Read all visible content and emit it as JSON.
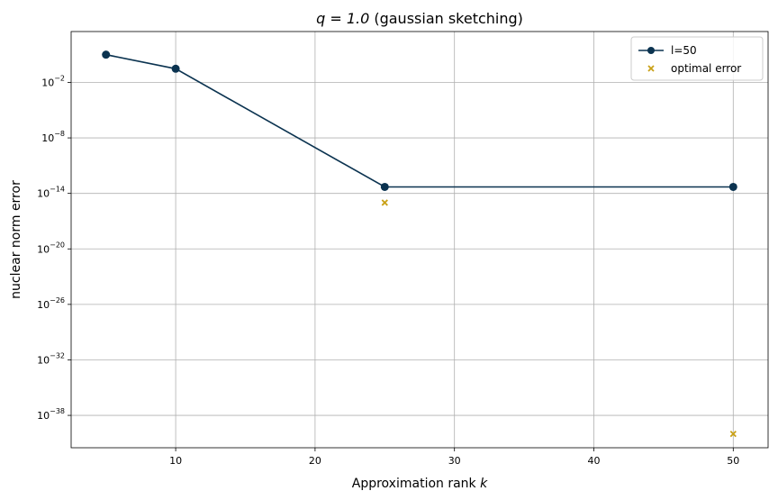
{
  "chart_data": {
    "type": "line",
    "title_math": "q = 1.0",
    "title_rest": " (gaussian sketching)",
    "xlabel": "Approximation rank",
    "xlabel_var": "k",
    "ylabel": "nuclear norm error",
    "y_scale": "log",
    "grid": true,
    "legend_position": "top-right",
    "xlim": [
      2.5,
      52.5
    ],
    "ylim_exp": [
      -41.5,
      3.5
    ],
    "x_ticks": [
      10,
      20,
      30,
      40,
      50
    ],
    "y_tick_exps": [
      -38,
      -32,
      -26,
      -20,
      -14,
      -8,
      -2
    ],
    "y_tick_base": "10",
    "series": [
      {
        "name": "l=50",
        "kind": "line-marker",
        "color": "#0b3350",
        "points": [
          {
            "x": 5,
            "y": 10.0
          },
          {
            "x": 10,
            "y": 0.3
          },
          {
            "x": 25,
            "y": 5e-14
          },
          {
            "x": 50,
            "y": 5e-14
          }
        ]
      },
      {
        "name": "optimal error",
        "kind": "scatter-x",
        "color": "#c9a117",
        "points": [
          {
            "x": 25,
            "y": 1e-15
          },
          {
            "x": 50,
            "y": 1e-40
          }
        ]
      }
    ]
  }
}
